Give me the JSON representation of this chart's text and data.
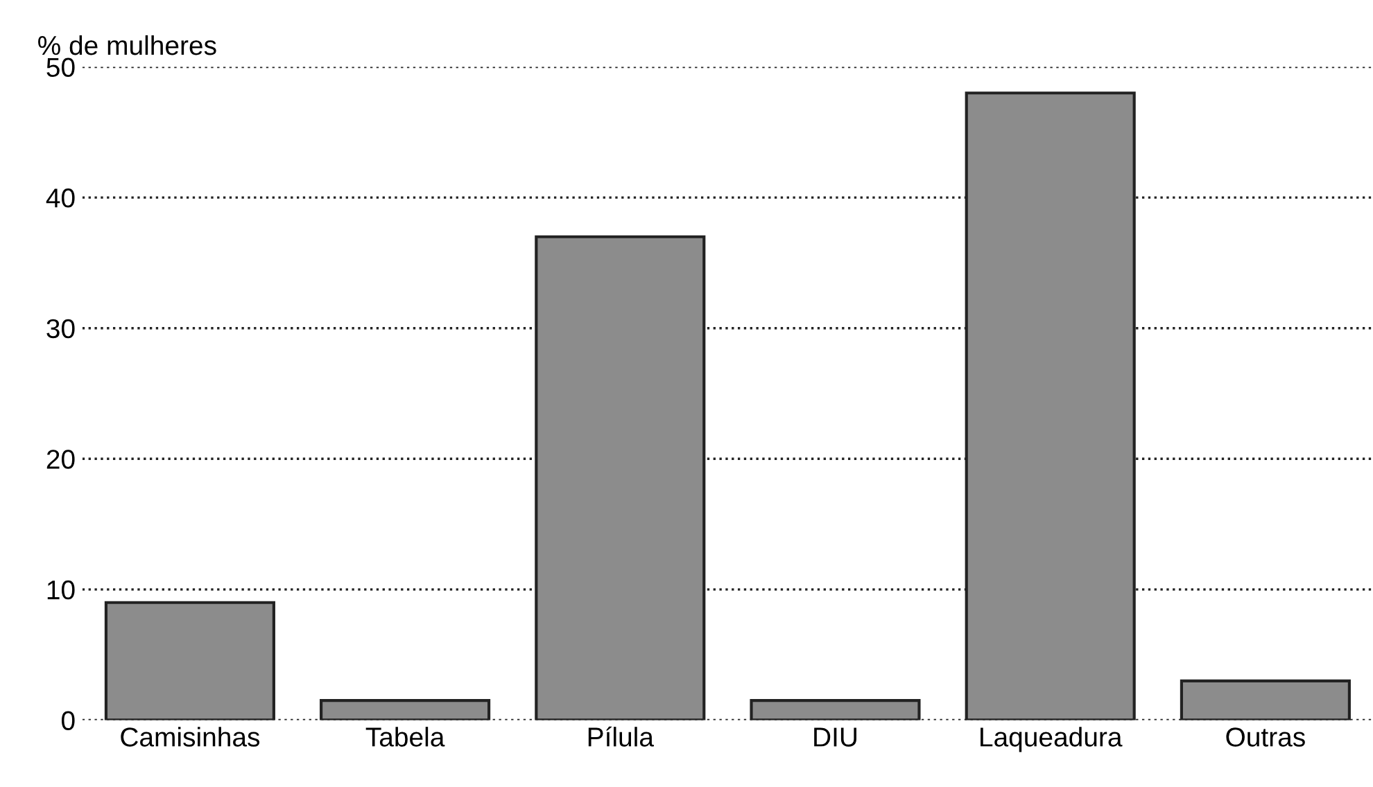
{
  "chart_data": {
    "type": "bar",
    "ylabel": "% de mulheres",
    "categories": [
      "Camisinhas",
      "Tabela",
      "Pílula",
      "DIU",
      "Laqueadura",
      "Outras"
    ],
    "values": [
      9,
      1.5,
      37,
      1.5,
      48,
      3
    ],
    "color": "#8c8c8c",
    "ylim": [
      0,
      50
    ],
    "yticks": [
      0,
      10,
      20,
      30,
      40,
      50
    ],
    "grid": "y"
  }
}
